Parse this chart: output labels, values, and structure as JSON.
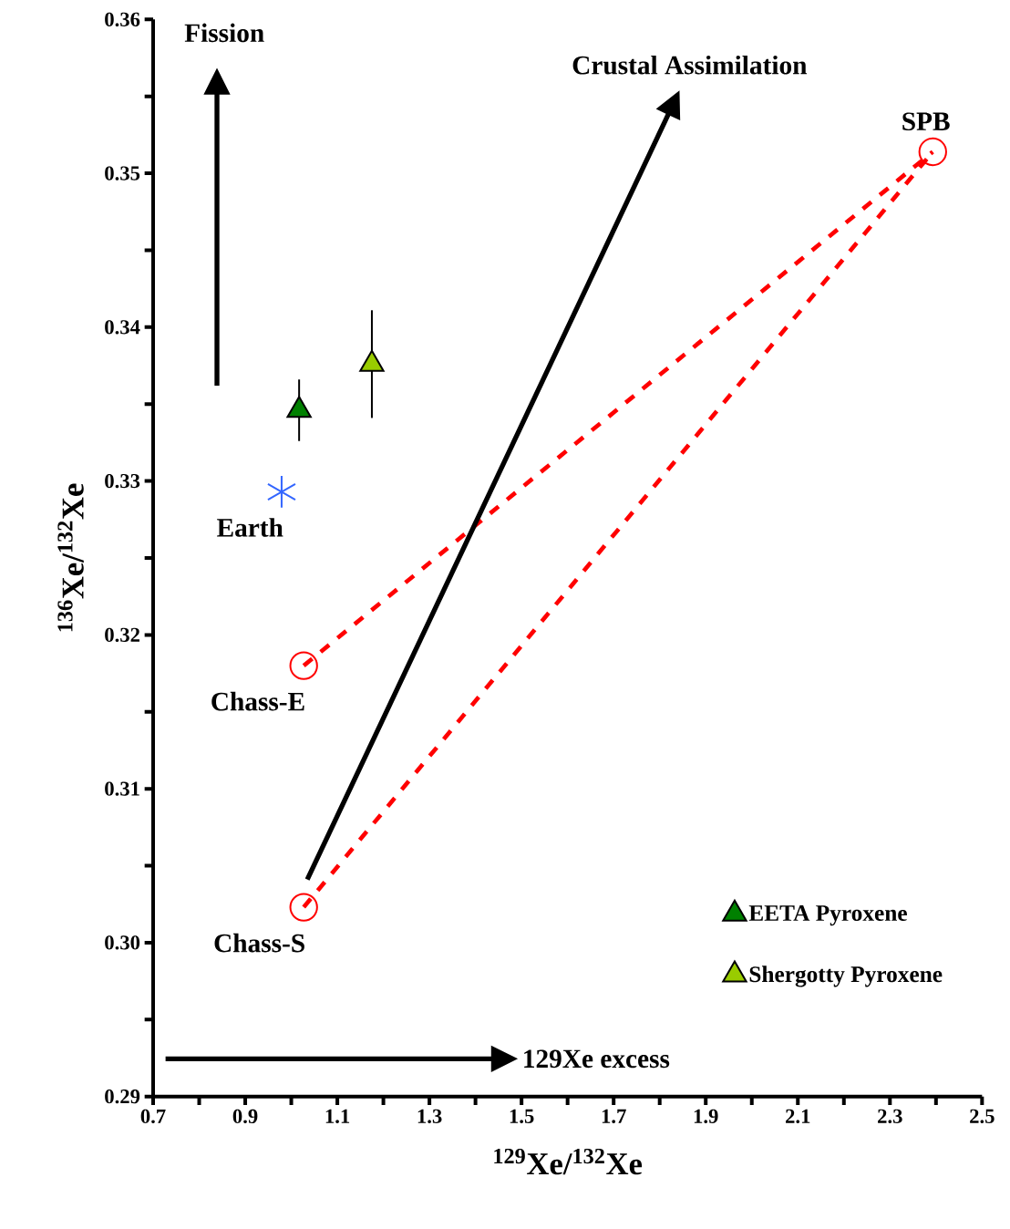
{
  "chart_data": {
    "type": "scatter",
    "xlabel": "$^{129}$Xe/$^{132}$Xe",
    "ylabel": "$^{136}$Xe/$^{132}$Xe",
    "xlim": [
      0.7,
      2.5
    ],
    "ylim": [
      0.29,
      0.36
    ],
    "xticks": [
      0.7,
      {
        "value": 0.8,
        "label": null
      },
      0.9,
      {
        "value": 1.0,
        "label": null
      },
      1.1,
      {
        "value": 1.2,
        "label": null
      },
      1.3,
      {
        "value": 1.4,
        "label": null
      },
      1.5,
      {
        "value": 1.6,
        "label": null
      },
      1.7,
      {
        "value": 1.8,
        "label": null
      },
      1.9,
      {
        "value": 2.0,
        "label": null
      },
      2.1,
      {
        "value": 2.2,
        "label": null
      },
      2.3,
      {
        "value": 2.4,
        "label": null
      },
      2.5
    ],
    "yticks": [
      {
        "value": 0.29,
        "label": "0.29"
      },
      {
        "value": 0.295,
        "label": null
      },
      {
        "value": 0.3,
        "label": "0.30"
      },
      {
        "value": 0.305,
        "label": null
      },
      {
        "value": 0.31,
        "label": "0.31"
      },
      {
        "value": 0.315,
        "label": null
      },
      {
        "value": 0.32,
        "label": "0.32"
      },
      {
        "value": 0.325,
        "label": null
      },
      {
        "value": 0.33,
        "label": "0.33"
      },
      {
        "value": 0.335,
        "label": null
      },
      {
        "value": 0.34,
        "label": "0.34"
      },
      {
        "value": 0.345,
        "label": null
      },
      {
        "value": 0.35,
        "label": "0.35"
      },
      {
        "value": 0.355,
        "label": null
      },
      {
        "value": 0.36,
        "label": "0.36"
      }
    ],
    "legend": "bottom right",
    "series": [
      {
        "name": "EETA Pyroxene",
        "marker": "triangle",
        "color": "#008000",
        "x": [
          1.017
        ],
        "values": [
          0.3346
        ],
        "errors": [
          0.002
        ]
      },
      {
        "name": "Shergotty Pyroxene",
        "marker": "triangle",
        "color": "#99cc00",
        "x": [
          1.175
        ],
        "values": [
          0.3376
        ],
        "errors": [
          0.0035
        ]
      },
      {
        "marker": "cross",
        "color": "#3366ff",
        "x": [
          0.979
        ],
        "values": [
          0.3293
        ]
      },
      {
        "type": "line",
        "marker": "none",
        "line_style": "dashed",
        "color": "#ff0000",
        "x": [
          1.027,
          2.393
        ],
        "values": [
          0.318,
          0.3514
        ]
      },
      {
        "type": "line",
        "marker": "none",
        "line_style": "dashed",
        "color": "#ff0000",
        "x": [
          1.027,
          2.393
        ],
        "values": [
          0.3023,
          0.3514
        ]
      },
      {
        "marker": "circle",
        "color": "#ff0000",
        "x": [
          1.027,
          1.027,
          2.393
        ],
        "values": [
          0.318,
          0.3023,
          0.3514
        ]
      }
    ],
    "annotations": [
      "Fission",
      "Crustal Assimilation",
      "129Xe excess",
      {
        "text": "Earth",
        "x": 0.979,
        "y": 0.3293
      },
      {
        "text": "Chass-E",
        "x": 1.027,
        "y": 0.318
      },
      {
        "text": "Chass-S",
        "x": 1.027,
        "y": 0.3023
      },
      {
        "text": "SPB",
        "x": 2.393,
        "y": 0.3514
      }
    ]
  }
}
